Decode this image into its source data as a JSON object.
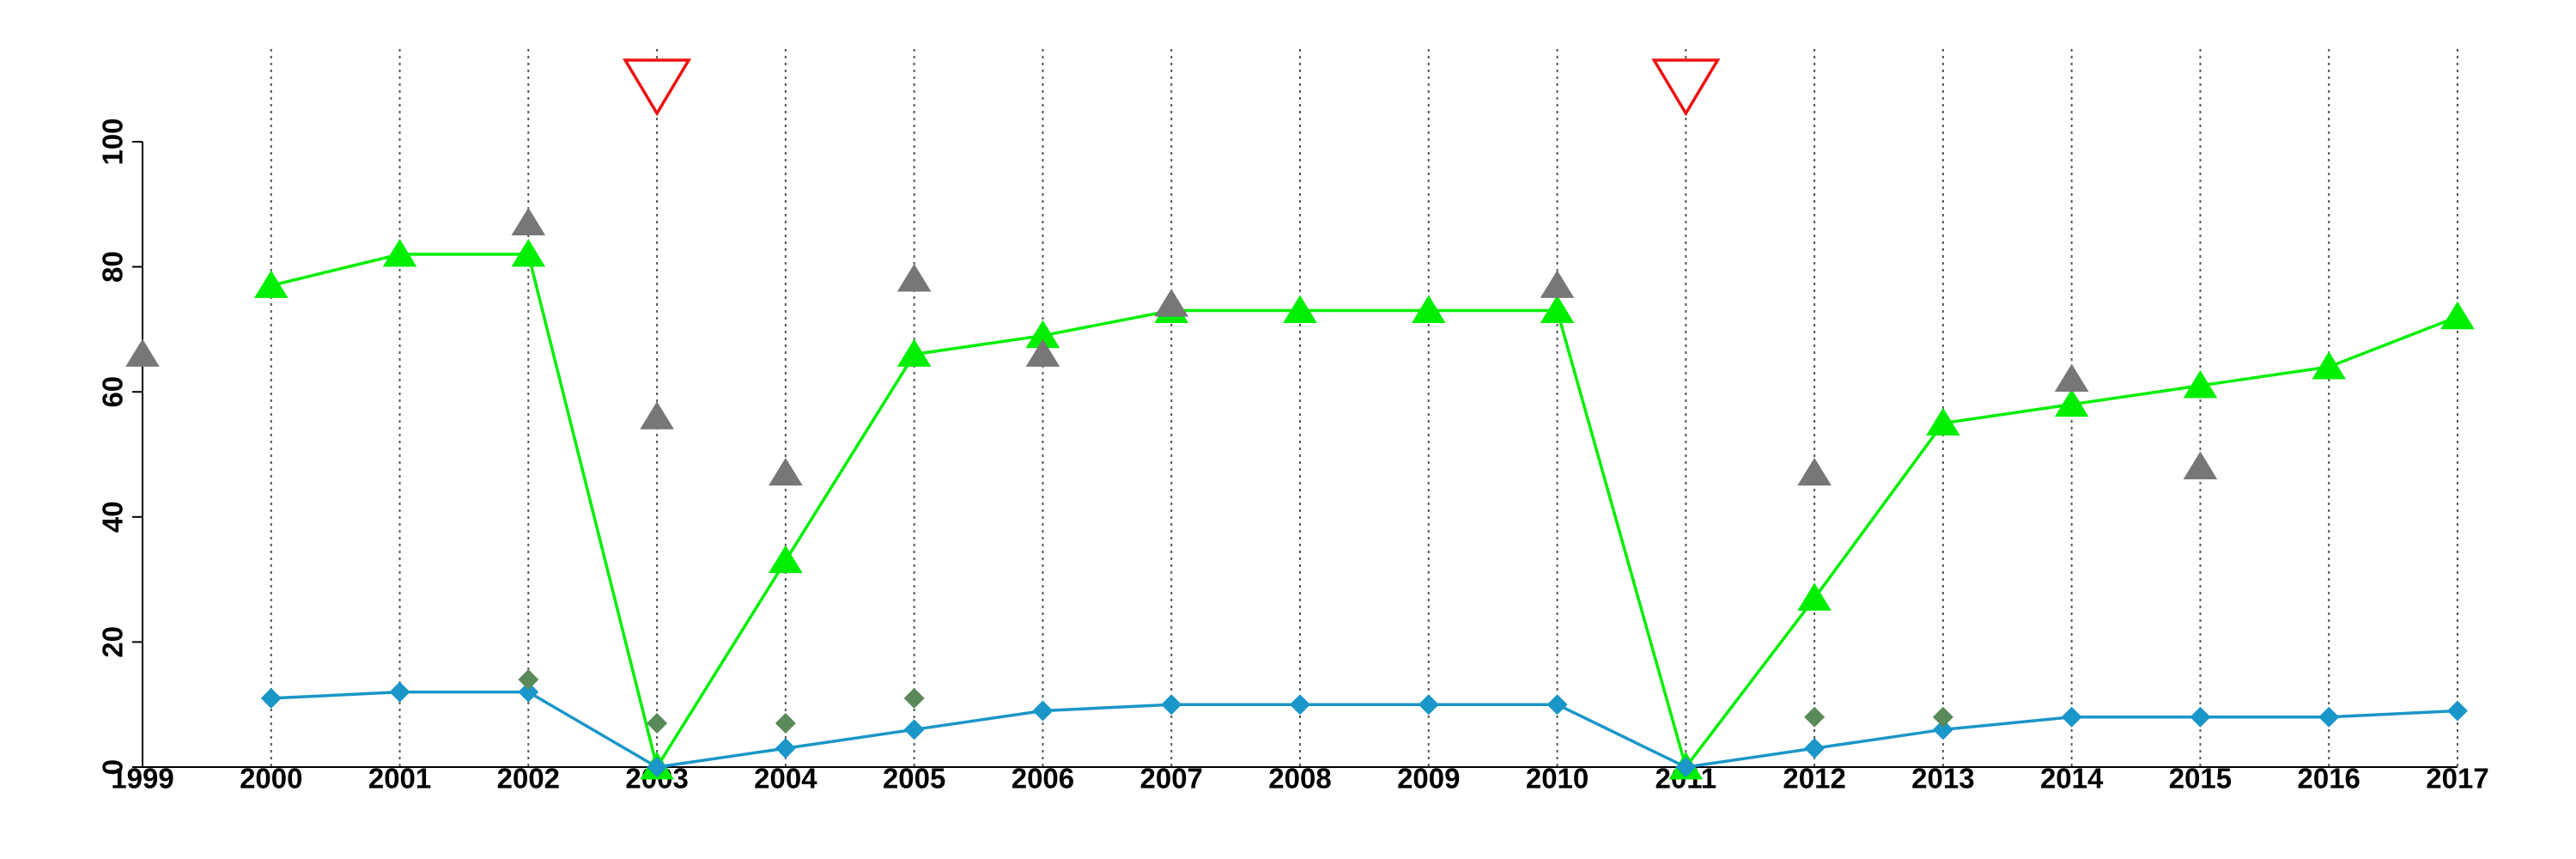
{
  "chart_data": {
    "type": "line",
    "x": [
      1999,
      2000,
      2001,
      2002,
      2003,
      2004,
      2005,
      2006,
      2007,
      2008,
      2009,
      2010,
      2011,
      2012,
      2013,
      2014,
      2015,
      2016,
      2017
    ],
    "xlim": [
      1999,
      2017
    ],
    "xticks": [
      1999,
      2000,
      2001,
      2002,
      2003,
      2004,
      2005,
      2006,
      2007,
      2008,
      2009,
      2010,
      2011,
      2012,
      2013,
      2014,
      2015,
      2016,
      2017
    ],
    "ylim": [
      0,
      100
    ],
    "yticks": [
      0,
      20,
      40,
      60,
      80,
      100
    ],
    "grid": true,
    "series": [
      {
        "color": "#00ee00",
        "marker": "triangle",
        "line": true,
        "values": [
          null,
          77,
          82,
          82,
          0,
          33,
          66,
          69,
          73,
          73,
          73,
          73,
          0,
          27,
          55,
          58,
          61,
          64,
          72
        ]
      },
      {
        "color": "#777777",
        "marker": "triangle",
        "line": false,
        "values": [
          66,
          null,
          null,
          87,
          56,
          47,
          78,
          66,
          74,
          null,
          null,
          77,
          null,
          47,
          null,
          62,
          48,
          null,
          null
        ]
      },
      {
        "color": "#1a96c8",
        "marker": "diamond",
        "line": true,
        "values": [
          null,
          11,
          12,
          12,
          0,
          3,
          6,
          9,
          10,
          10,
          10,
          10,
          0,
          3,
          6,
          8,
          8,
          8,
          9
        ]
      },
      {
        "color": "#5a8a5a",
        "marker": "diamond",
        "line": false,
        "values": [
          null,
          null,
          null,
          14,
          7,
          7,
          11,
          null,
          null,
          null,
          null,
          null,
          null,
          8,
          8,
          null,
          null,
          null,
          null
        ]
      }
    ],
    "events": {
      "color": "#ee1111",
      "x": [
        2003,
        2011
      ]
    }
  }
}
